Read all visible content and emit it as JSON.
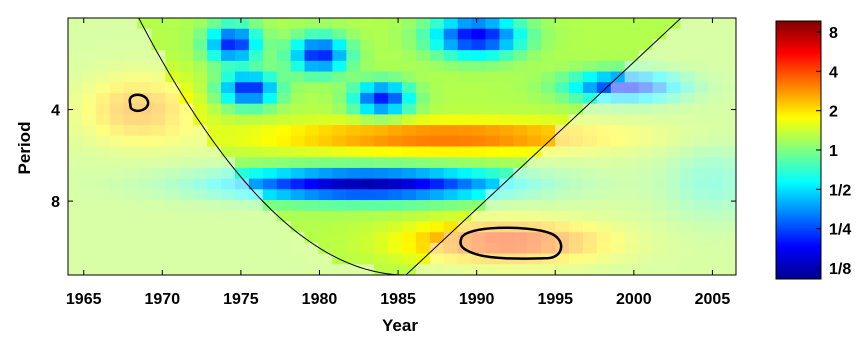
{
  "chart_data": {
    "type": "heatmap",
    "title": "",
    "xlabel": "Year",
    "ylabel": "Period",
    "x_ticks": [
      "1965",
      "1970",
      "1975",
      "1980",
      "1985",
      "1990",
      "1995",
      "2000",
      "2005"
    ],
    "y_ticks": [
      "4",
      "8"
    ],
    "xlim": [
      1964,
      2006.5
    ],
    "period_range": [
      2,
      14
    ],
    "y_scale": "log2",
    "colorbar": {
      "tick_labels": [
        "8",
        "4",
        "2",
        "1",
        "1/2",
        "1/4",
        "1/8"
      ],
      "range": [
        0.125,
        8
      ],
      "scale": "log2",
      "colormap": "jet"
    },
    "cone_of_influence": {
      "apex_year": 1985.5,
      "left_top_year": 1968.5,
      "right_top_year": 2003
    },
    "significance_contours": [
      {
        "center_year": 1968.5,
        "center_period": 3.8
      },
      {
        "center_year": 1992,
        "center_period": 11
      }
    ],
    "grid": false
  }
}
